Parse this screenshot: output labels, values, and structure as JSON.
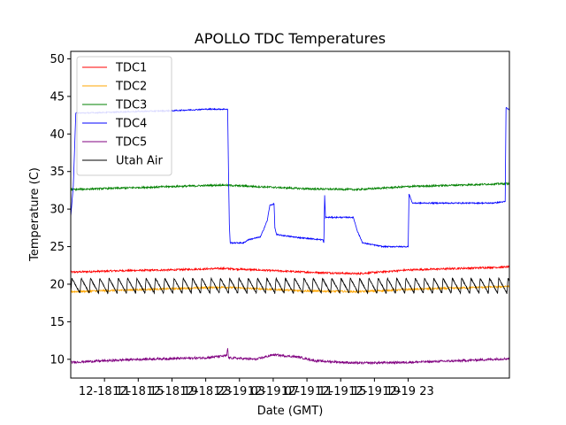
{
  "chart_data": {
    "type": "line",
    "title": "APOLLO TDC Temperatures",
    "xlabel": "Date (GMT)",
    "ylabel": "Temperature (C)",
    "x_unit": "hours since 12-18 07:00 GMT",
    "xlim": [
      0,
      52
    ],
    "ylim": [
      7.5,
      51
    ],
    "yticks": [
      10,
      15,
      20,
      25,
      30,
      35,
      40,
      45,
      50
    ],
    "xticks": [
      {
        "x": 4,
        "label": "12-18 11"
      },
      {
        "x": 8,
        "label": "12-18 15"
      },
      {
        "x": 12,
        "label": "12-18 19"
      },
      {
        "x": 16,
        "label": "12-18 23"
      },
      {
        "x": 20,
        "label": "12-19 03"
      },
      {
        "x": 24,
        "label": "12-19 07"
      },
      {
        "x": 28,
        "label": "12-19 11"
      },
      {
        "x": 32,
        "label": "12-19 15"
      },
      {
        "x": 36,
        "label": "12-19 19"
      },
      {
        "x": 40,
        "label": "12-19 23"
      }
    ],
    "legend_position": "top-left",
    "series": [
      {
        "name": "TDC1",
        "color": "#ff0000",
        "points": [
          [
            0,
            21.6
          ],
          [
            6,
            21.8
          ],
          [
            12,
            21.9
          ],
          [
            18,
            22.1
          ],
          [
            22,
            21.9
          ],
          [
            28,
            21.6
          ],
          [
            34,
            21.4
          ],
          [
            40,
            21.9
          ],
          [
            46,
            22.1
          ],
          [
            52,
            22.3
          ]
        ]
      },
      {
        "name": "TDC2",
        "color": "#ffa500",
        "points": [
          [
            0,
            19.0
          ],
          [
            6,
            19.2
          ],
          [
            12,
            19.4
          ],
          [
            18,
            19.6
          ],
          [
            22,
            19.4
          ],
          [
            28,
            19.1
          ],
          [
            34,
            19.0
          ],
          [
            40,
            19.3
          ],
          [
            46,
            19.5
          ],
          [
            52,
            19.7
          ]
        ]
      },
      {
        "name": "TDC3",
        "color": "#008000",
        "points": [
          [
            0,
            32.6
          ],
          [
            6,
            32.8
          ],
          [
            12,
            33.0
          ],
          [
            18,
            33.2
          ],
          [
            22,
            33.0
          ],
          [
            28,
            32.7
          ],
          [
            34,
            32.6
          ],
          [
            40,
            33.0
          ],
          [
            46,
            33.2
          ],
          [
            52,
            33.4
          ]
        ]
      },
      {
        "name": "TDC4",
        "color": "#0000ff",
        "points": [
          [
            0,
            29
          ],
          [
            0.3,
            33
          ],
          [
            0.6,
            42.8
          ],
          [
            2,
            42.8
          ],
          [
            8,
            43.0
          ],
          [
            12,
            43.1
          ],
          [
            16,
            43.3
          ],
          [
            18.6,
            43.3
          ],
          [
            18.7,
            35
          ],
          [
            18.8,
            28
          ],
          [
            18.9,
            25.5
          ],
          [
            20.5,
            25.5
          ],
          [
            21,
            25.9
          ],
          [
            22.5,
            26.3
          ],
          [
            23.3,
            28.5
          ],
          [
            23.6,
            30.5
          ],
          [
            24.1,
            30.7
          ],
          [
            24.2,
            27.5
          ],
          [
            24.4,
            26.6
          ],
          [
            27,
            26.2
          ],
          [
            29,
            26.0
          ],
          [
            29.9,
            25.9
          ],
          [
            30.0,
            25.5
          ],
          [
            30.1,
            31.8
          ],
          [
            30.2,
            28.9
          ],
          [
            33.5,
            28.9
          ],
          [
            34.0,
            27.0
          ],
          [
            34.6,
            25.5
          ],
          [
            37,
            25.0
          ],
          [
            40,
            25.0
          ],
          [
            40.1,
            32.0
          ],
          [
            40.5,
            30.8
          ],
          [
            44,
            30.8
          ],
          [
            50,
            30.8
          ],
          [
            51.5,
            31.0
          ],
          [
            51.6,
            43.5
          ],
          [
            52,
            43.2
          ]
        ]
      },
      {
        "name": "TDC5",
        "color": "#800080",
        "points": [
          [
            0,
            9.6
          ],
          [
            4,
            9.8
          ],
          [
            8,
            10.0
          ],
          [
            12,
            10.1
          ],
          [
            16,
            10.2
          ],
          [
            18.5,
            10.5
          ],
          [
            18.6,
            11.5
          ],
          [
            18.7,
            10.2
          ],
          [
            22,
            10.0
          ],
          [
            24,
            10.6
          ],
          [
            27,
            10.3
          ],
          [
            29,
            9.8
          ],
          [
            34,
            9.5
          ],
          [
            40,
            9.6
          ],
          [
            46,
            9.8
          ],
          [
            52,
            10.1
          ]
        ]
      },
      {
        "name": "Utah Air",
        "color": "#000000",
        "points": [
          [
            0,
            19.6
          ],
          [
            52,
            19.6
          ]
        ]
      }
    ]
  }
}
